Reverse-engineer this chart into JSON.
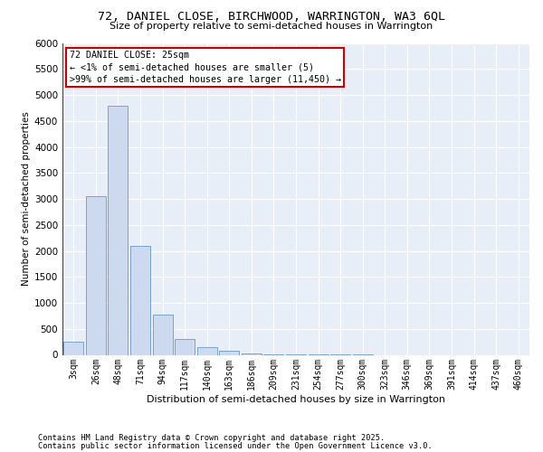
{
  "title": "72, DANIEL CLOSE, BIRCHWOOD, WARRINGTON, WA3 6QL",
  "subtitle": "Size of property relative to semi-detached houses in Warrington",
  "xlabel": "Distribution of semi-detached houses by size in Warrington",
  "ylabel": "Number of semi-detached properties",
  "bar_color": "#ccd9ee",
  "bar_edge_color": "#7aa3cc",
  "background_color": "#e8eef8",
  "categories": [
    "3sqm",
    "26sqm",
    "48sqm",
    "71sqm",
    "94sqm",
    "117sqm",
    "140sqm",
    "163sqm",
    "186sqm",
    "209sqm",
    "231sqm",
    "254sqm",
    "277sqm",
    "300sqm",
    "323sqm",
    "346sqm",
    "369sqm",
    "391sqm",
    "414sqm",
    "437sqm",
    "460sqm"
  ],
  "values": [
    250,
    3050,
    4800,
    2100,
    770,
    310,
    145,
    75,
    30,
    15,
    8,
    5,
    2,
    1,
    0,
    0,
    0,
    0,
    0,
    0,
    0
  ],
  "ylim": [
    0,
    6000
  ],
  "yticks": [
    0,
    500,
    1000,
    1500,
    2000,
    2500,
    3000,
    3500,
    4000,
    4500,
    5000,
    5500,
    6000
  ],
  "annotation_title": "72 DANIEL CLOSE: 25sqm",
  "annotation_line1": "← <1% of semi-detached houses are smaller (5)",
  "annotation_line2": ">99% of semi-detached houses are larger (11,450) →",
  "annotation_box_color": "#ffffff",
  "annotation_box_edge": "#cc0000",
  "vline_color": "#cc0000",
  "footnote1": "Contains HM Land Registry data © Crown copyright and database right 2025.",
  "footnote2": "Contains public sector information licensed under the Open Government Licence v3.0."
}
